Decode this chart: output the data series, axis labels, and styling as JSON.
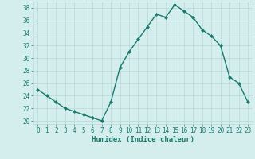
{
  "x": [
    0,
    1,
    2,
    3,
    4,
    5,
    6,
    7,
    8,
    9,
    10,
    11,
    12,
    13,
    14,
    15,
    16,
    17,
    18,
    19,
    20,
    21,
    22,
    23
  ],
  "y": [
    25.0,
    24.0,
    23.0,
    22.0,
    21.5,
    21.0,
    20.5,
    20.0,
    23.0,
    28.5,
    31.0,
    33.0,
    35.0,
    37.0,
    36.5,
    38.5,
    37.5,
    36.5,
    34.5,
    33.5,
    32.0,
    27.0,
    26.0,
    23.0
  ],
  "line_color": "#1a7a6e",
  "marker": "D",
  "markersize": 2.0,
  "linewidth": 1.0,
  "xlabel": "Humidex (Indice chaleur)",
  "xlim": [
    -0.5,
    23.5
  ],
  "ylim": [
    19.5,
    39.0
  ],
  "yticks": [
    20,
    22,
    24,
    26,
    28,
    30,
    32,
    34,
    36,
    38
  ],
  "xticks": [
    0,
    1,
    2,
    3,
    4,
    5,
    6,
    7,
    8,
    9,
    10,
    11,
    12,
    13,
    14,
    15,
    16,
    17,
    18,
    19,
    20,
    21,
    22,
    23
  ],
  "xtick_labels": [
    "0",
    "1",
    "2",
    "3",
    "4",
    "5",
    "6",
    "7",
    "8",
    "9",
    "10",
    "11",
    "12",
    "13",
    "14",
    "15",
    "16",
    "17",
    "18",
    "19",
    "20",
    "21",
    "22",
    "23"
  ],
  "background_color": "#d4eeee",
  "grid_color": "#b8d8d8",
  "font_color": "#1a7a6e",
  "tick_fontsize": 5.5,
  "xlabel_fontsize": 6.5,
  "xlabel_fontweight": "bold"
}
